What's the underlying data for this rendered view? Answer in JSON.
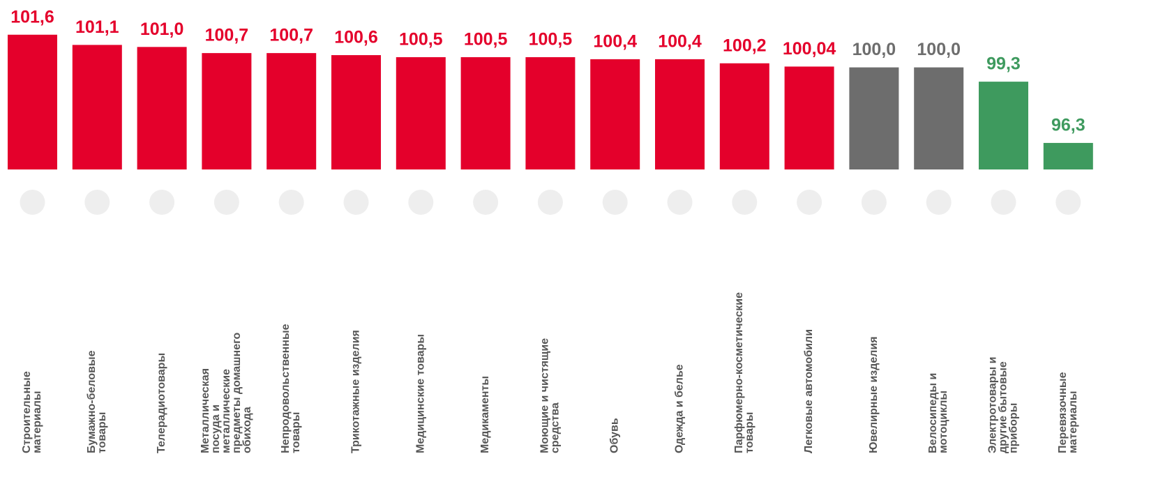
{
  "chart_data": {
    "type": "bar",
    "categories": [
      "Строительные материалы",
      "Бумажно-беловые товары",
      "Телерадиотовары",
      "Металлическая посуда и металлические предметы домашнего обихода",
      "Непродовольственные товары",
      "Трикотажные изделия",
      "Медицинские товары",
      "Медикаменты",
      "Моющие и чистящие средства",
      "Обувь",
      "Одежда и белье",
      "Парфюмерно-косметические товары",
      "Легковые автомобили",
      "Ювелирные изделия",
      "Велосипеды и мотоциклы",
      "Электротовары и другие бытовые приборы",
      "Перевязочные материалы"
    ],
    "values": [
      101.6,
      101.1,
      101.0,
      100.7,
      100.7,
      100.6,
      100.5,
      100.5,
      100.5,
      100.4,
      100.4,
      100.2,
      100.04,
      100.0,
      100.0,
      99.3,
      96.3
    ],
    "value_labels": [
      "101,6",
      "101,1",
      "101,0",
      "100,7",
      "100,7",
      "100,6",
      "100,5",
      "100,5",
      "100,5",
      "100,4",
      "100,4",
      "100,2",
      "100,04",
      "100,0",
      "100,0",
      "99,3",
      "96,3"
    ],
    "colors": [
      "#e4002b",
      "#e4002b",
      "#e4002b",
      "#e4002b",
      "#e4002b",
      "#e4002b",
      "#e4002b",
      "#e4002b",
      "#e4002b",
      "#e4002b",
      "#e4002b",
      "#e4002b",
      "#e4002b",
      "#6d6d6d",
      "#6d6d6d",
      "#3e9a5e",
      "#3e9a5e"
    ],
    "ylim": [
      95,
      103.3
    ]
  }
}
